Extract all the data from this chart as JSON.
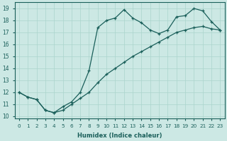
{
  "xlabel": "Humidex (Indice chaleur)",
  "bg_color": "#cce8e4",
  "line_color": "#1a5f5a",
  "grid_color": "#aad4cc",
  "xlim": [
    -0.5,
    23.5
  ],
  "ylim": [
    9.8,
    19.5
  ],
  "yticks": [
    10,
    11,
    12,
    13,
    14,
    15,
    16,
    17,
    18,
    19
  ],
  "xticks": [
    0,
    1,
    2,
    3,
    4,
    5,
    6,
    7,
    8,
    9,
    10,
    11,
    12,
    13,
    14,
    15,
    16,
    17,
    18,
    19,
    20,
    21,
    22,
    23
  ],
  "line1_x": [
    0,
    1,
    2,
    3,
    4,
    5,
    6,
    7,
    8,
    9,
    10,
    11,
    12,
    13,
    14,
    15,
    16,
    17,
    18,
    19,
    20,
    21,
    22,
    23
  ],
  "line1_y": [
    12.0,
    11.6,
    11.4,
    10.5,
    10.3,
    10.5,
    11.0,
    11.5,
    12.0,
    12.8,
    13.5,
    14.0,
    14.5,
    15.0,
    15.4,
    15.8,
    16.2,
    16.6,
    17.0,
    17.2,
    17.4,
    17.5,
    17.3,
    17.2
  ],
  "line2_x": [
    0,
    1,
    2,
    3,
    4,
    5,
    6,
    7,
    8,
    9,
    10,
    11,
    12,
    13,
    14,
    15,
    16,
    17,
    18,
    19,
    20,
    21,
    22,
    23
  ],
  "line2_y": [
    12.0,
    11.6,
    11.4,
    10.5,
    10.3,
    10.8,
    11.2,
    12.0,
    13.8,
    17.4,
    18.0,
    18.2,
    18.9,
    18.2,
    17.8,
    17.2,
    16.9,
    17.2,
    18.3,
    18.4,
    19.0,
    18.8,
    17.9,
    17.2
  ]
}
